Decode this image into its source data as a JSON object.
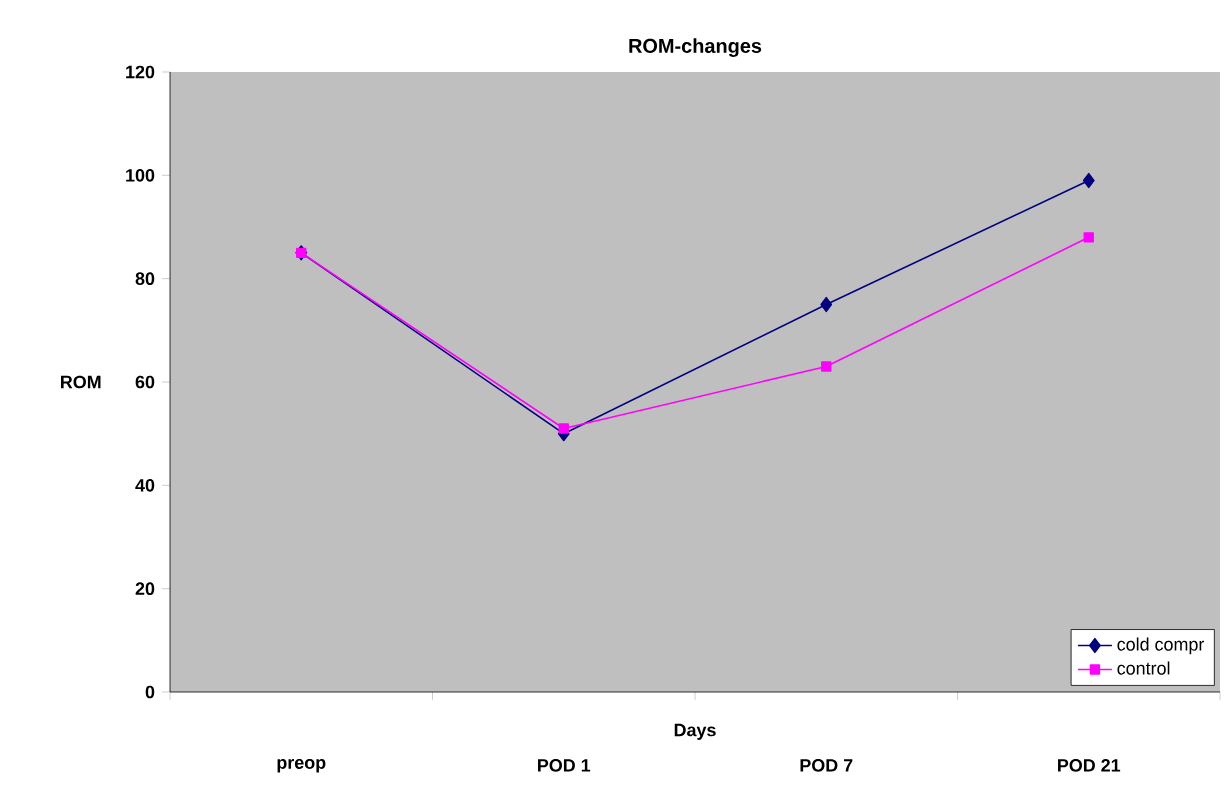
{
  "chart_data": {
    "type": "line",
    "title": "ROM-changes",
    "xlabel": "Days",
    "ylabel": "ROM",
    "categories": [
      "preop",
      "POD 1",
      "POD 7",
      "POD 21"
    ],
    "series": [
      {
        "name": "cold compr",
        "color": "#000080",
        "marker": "diamond",
        "values": [
          85,
          50,
          75,
          99
        ]
      },
      {
        "name": "control",
        "color": "#ff00ff",
        "marker": "square",
        "values": [
          85,
          51,
          63,
          88
        ]
      }
    ],
    "ylim": [
      0,
      120
    ],
    "yticks": [
      0,
      20,
      40,
      60,
      80,
      100,
      120
    ],
    "grid": false,
    "legend": "bottom right"
  }
}
